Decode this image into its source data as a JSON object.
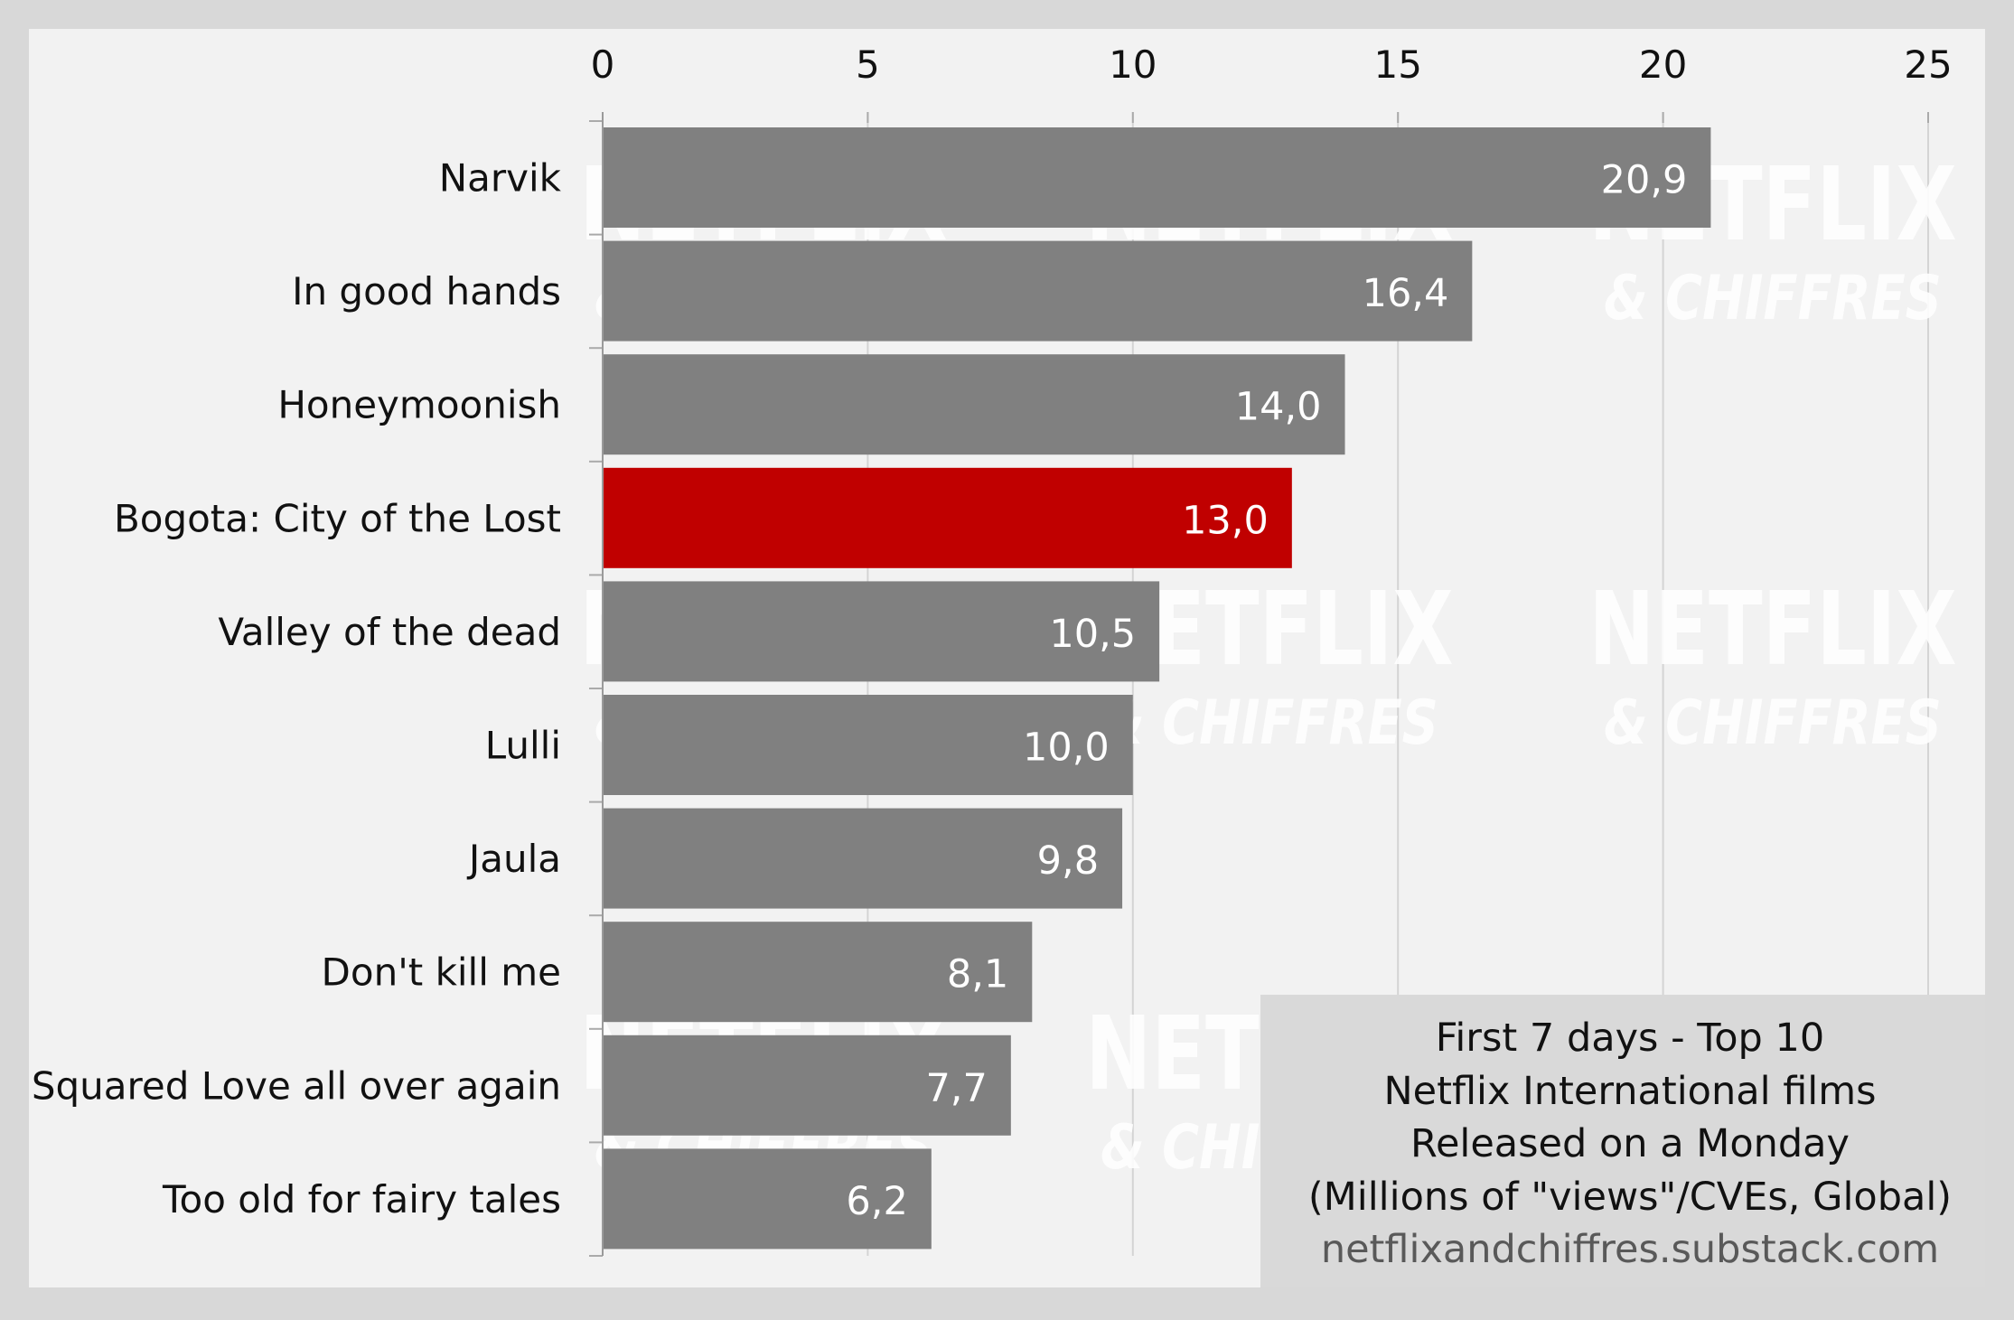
{
  "chart_data": {
    "type": "bar",
    "orientation": "horizontal",
    "categories": [
      "Narvik",
      "In good hands",
      "Honeymoonish",
      "Bogota: City of the Lost",
      "Valley of the dead",
      "Lulli",
      "Jaula",
      "Don't kill me",
      "Squared Love all over again",
      "Too old for fairy tales"
    ],
    "values": [
      20.9,
      16.4,
      14.0,
      13.0,
      10.5,
      10.0,
      9.8,
      8.1,
      7.7,
      6.2
    ],
    "value_labels": [
      "20,9",
      "16,4",
      "14,0",
      "13,0",
      "10,5",
      "10,0",
      "9,8",
      "8,1",
      "7,7",
      "6,2"
    ],
    "highlight_index": 3,
    "xlim": [
      0,
      25
    ],
    "xticks": [
      "0",
      "5",
      "10",
      "15",
      "20",
      "25"
    ],
    "x_axis_position": "top",
    "grid": true,
    "colors": {
      "bar": "#808080",
      "highlight": "#c00000",
      "background": "#f2f2f2",
      "frame": "#d8d8d8",
      "legend_box": "#d9d9d9",
      "watermark": "#ffffff",
      "text": "#111111",
      "source_text": "#595959",
      "grid": "#d4d4d4"
    },
    "legend_box": {
      "placement": "bottom-right",
      "lines": [
        "First 7 days - Top 10",
        "Netflix International films",
        "Released on a Monday",
        "(Millions of \"views\"/CVEs, Global)"
      ],
      "source": "netflixandchiffres.substack.com"
    },
    "watermark": {
      "line1": "NETFLIX",
      "line2": "& CHIFFRES"
    }
  }
}
